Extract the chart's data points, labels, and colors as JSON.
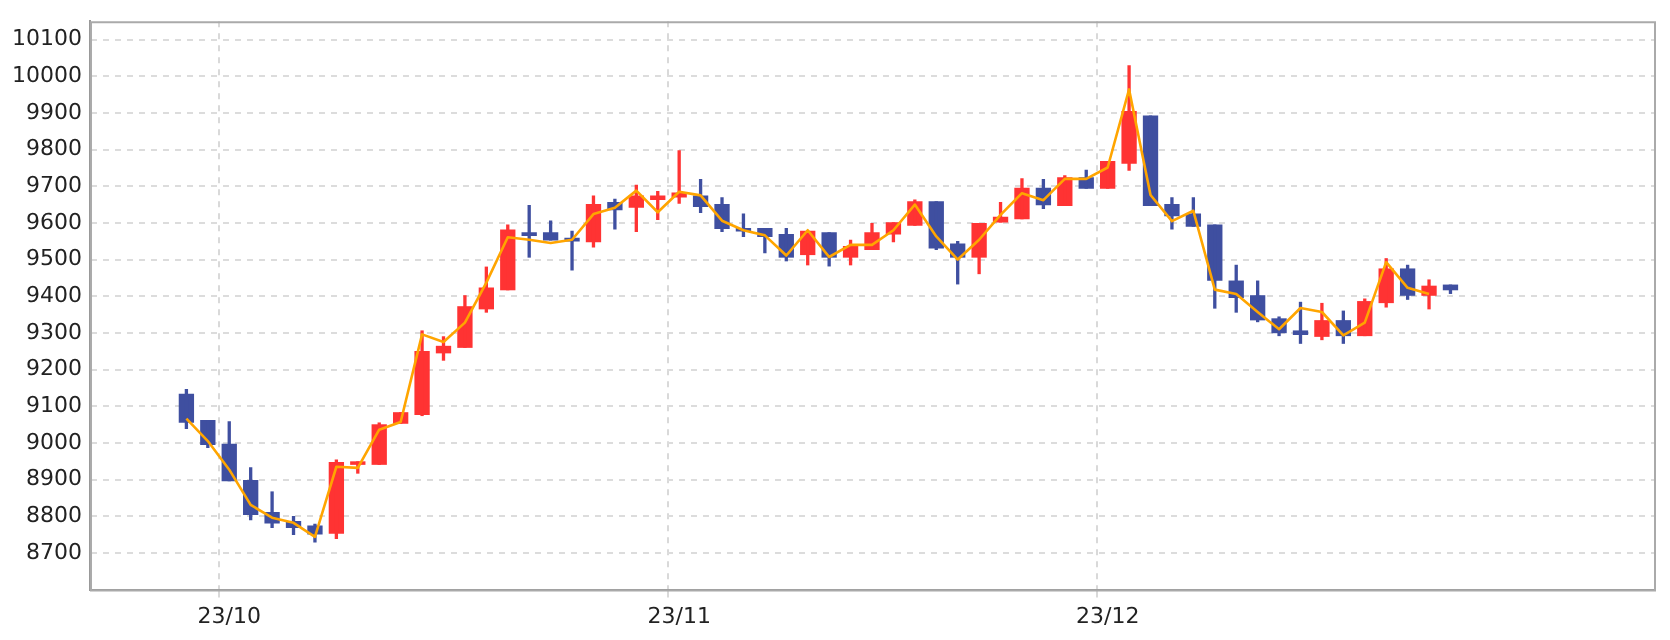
{
  "chart_data": {
    "type": "candlestick",
    "categories": [
      null,
      null,
      null,
      null,
      null,
      null,
      "23/10",
      null,
      null,
      null,
      null,
      null,
      null,
      null,
      null,
      null,
      null,
      null,
      null,
      null,
      null,
      null,
      null,
      null,
      null,
      null,
      null,
      "23/11",
      null,
      null,
      null,
      null,
      null,
      null,
      null,
      null,
      null,
      null,
      null,
      null,
      null,
      null,
      null,
      null,
      null,
      null,
      null,
      "23/12",
      null,
      null,
      null,
      null,
      null,
      null,
      null,
      null,
      null,
      null,
      null,
      null,
      null,
      null,
      null,
      null,
      null,
      null,
      null,
      null,
      null,
      null,
      null,
      null,
      null
    ],
    "ohlc": [
      null,
      null,
      null,
      null,
      [
        9132,
        9145,
        9040,
        9057
      ],
      [
        9061,
        9061,
        8988,
        8996
      ],
      [
        8996,
        9057,
        8897,
        8897
      ],
      [
        8897,
        8932,
        8791,
        8805
      ],
      [
        8810,
        8866,
        8770,
        8782
      ],
      [
        8785,
        8799,
        8751,
        8770
      ],
      [
        8773,
        8778,
        8730,
        8752
      ],
      [
        8754,
        8953,
        8740,
        8946
      ],
      [
        8942,
        8948,
        8918,
        8948
      ],
      [
        8942,
        9054,
        8942,
        9049
      ],
      [
        9054,
        9082,
        9054,
        9082
      ],
      [
        9078,
        9305,
        9075,
        9249
      ],
      [
        9246,
        9289,
        9226,
        9263
      ],
      [
        9261,
        9401,
        9261,
        9371
      ],
      [
        9366,
        9479,
        9357,
        9422
      ],
      [
        9418,
        9594,
        9418,
        9580
      ],
      [
        9573,
        9647,
        9507,
        9566
      ],
      [
        9573,
        9605,
        9554,
        9554
      ],
      [
        9558,
        9577,
        9472,
        9551
      ],
      [
        9549,
        9673,
        9535,
        9650
      ],
      [
        9655,
        9664,
        9584,
        9636
      ],
      [
        9643,
        9702,
        9577,
        9673
      ],
      [
        9664,
        9685,
        9610,
        9673
      ],
      [
        9671,
        9796,
        9654,
        9681
      ],
      [
        9673,
        9718,
        9629,
        9645
      ],
      [
        9650,
        9668,
        9577,
        9585
      ],
      [
        9584,
        9624,
        9563,
        9578
      ],
      [
        9584,
        9584,
        9519,
        9563
      ],
      [
        9568,
        9584,
        9497,
        9507
      ],
      [
        9514,
        9577,
        9486,
        9577
      ],
      [
        9573,
        9573,
        9483,
        9507
      ],
      [
        9507,
        9552,
        9486,
        9535
      ],
      [
        9528,
        9598,
        9528,
        9573
      ],
      [
        9570,
        9600,
        9549,
        9600
      ],
      [
        9594,
        9662,
        9594,
        9657
      ],
      [
        9657,
        9657,
        9528,
        9532
      ],
      [
        9542,
        9549,
        9434,
        9507
      ],
      [
        9507,
        9598,
        9462,
        9598
      ],
      [
        9603,
        9655,
        9603,
        9615
      ],
      [
        9612,
        9720,
        9612,
        9694
      ],
      [
        9694,
        9718,
        9640,
        9650
      ],
      [
        9648,
        9728,
        9648,
        9723
      ],
      [
        9723,
        9743,
        9695,
        9695
      ],
      [
        9695,
        9767,
        9695,
        9767
      ],
      [
        9763,
        10028,
        9744,
        9903
      ],
      [
        9891,
        9891,
        9648,
        9648
      ],
      [
        9650,
        9668,
        9584,
        9620
      ],
      [
        9624,
        9668,
        9591,
        9591
      ],
      [
        9594,
        9594,
        9368,
        9444
      ],
      [
        9441,
        9484,
        9357,
        9397
      ],
      [
        9401,
        9441,
        9331,
        9336
      ],
      [
        9338,
        9343,
        9293,
        9301
      ],
      [
        9305,
        9383,
        9272,
        9296
      ],
      [
        9291,
        9380,
        9282,
        9333
      ],
      [
        9333,
        9359,
        9272,
        9293
      ],
      [
        9293,
        9392,
        9293,
        9385
      ],
      [
        9383,
        9502,
        9371,
        9474
      ],
      [
        9474,
        9484,
        9392,
        9403
      ],
      [
        9403,
        9444,
        9366,
        9427
      ],
      [
        9430,
        9430,
        9408,
        9418
      ],
      null,
      null,
      null,
      null,
      null,
      null,
      null,
      null,
      null
    ],
    "colors": [
      null,
      null,
      null,
      null,
      "#3f4fa0",
      "#3f4fa0",
      "#3f4fa0",
      "#3f4fa0",
      "#3f4fa0",
      "#3f4fa0",
      "#3f4fa0",
      "#ff3333",
      "#ff3333",
      "#ff3333",
      "#ff3333",
      "#ff3333",
      "#ff3333",
      "#ff3333",
      "#ff3333",
      "#ff3333",
      "#3f4fa0",
      "#3f4fa0",
      "#3f4fa0",
      "#ff3333",
      "#3f4fa0",
      "#ff3333",
      "#ff3333",
      "#ff3333",
      "#3f4fa0",
      "#3f4fa0",
      "#3f4fa0",
      "#3f4fa0",
      "#3f4fa0",
      "#ff3333",
      "#3f4fa0",
      "#ff3333",
      "#ff3333",
      "#ff3333",
      "#ff3333",
      "#3f4fa0",
      "#3f4fa0",
      "#ff3333",
      "#ff3333",
      "#ff3333",
      "#3f4fa0",
      "#ff3333",
      "#3f4fa0",
      "#ff3333",
      "#ff3333",
      "#3f4fa0",
      "#3f4fa0",
      "#3f4fa0",
      "#3f4fa0",
      "#3f4fa0",
      "#3f4fa0",
      "#3f4fa0",
      "#3f4fa0",
      "#ff3333",
      "#3f4fa0",
      "#ff3333",
      "#ff3333",
      "#3f4fa0",
      "#ff3333",
      "#3f4fa0",
      null,
      null,
      null,
      null,
      null,
      null,
      null,
      null,
      null
    ],
    "series": [
      {
        "type": "line",
        "color": "#ffa500",
        "values": [
          null,
          null,
          null,
          null,
          9066,
          9005,
          8927,
          8831,
          8796,
          8782,
          8744,
          8935,
          8932,
          9036,
          9057,
          9296,
          9275,
          9328,
          9437,
          9561,
          9554,
          9545,
          9554,
          9624,
          9641,
          9688,
          9629,
          9685,
          9675,
          9606,
          9580,
          9566,
          9511,
          9580,
          9507,
          9540,
          9540,
          9580,
          9650,
          9563,
          9500,
          9554,
          9622,
          9681,
          9662,
          9720,
          9720,
          9751,
          9964,
          9676,
          9605,
          9633,
          9418,
          9406,
          9357,
          9310,
          9368,
          9357,
          9293,
          9328,
          9493,
          9423,
          9406,
          null,
          null,
          null,
          null,
          null,
          null,
          null,
          null,
          null,
          null
        ]
      }
    ],
    "ylim": [
      8600,
      10150
    ],
    "yticks": [
      8700,
      8800,
      8900,
      9000,
      9100,
      9200,
      9300,
      9400,
      9500,
      9600,
      9700,
      9800,
      9900,
      10000,
      10100
    ],
    "grid": true
  }
}
